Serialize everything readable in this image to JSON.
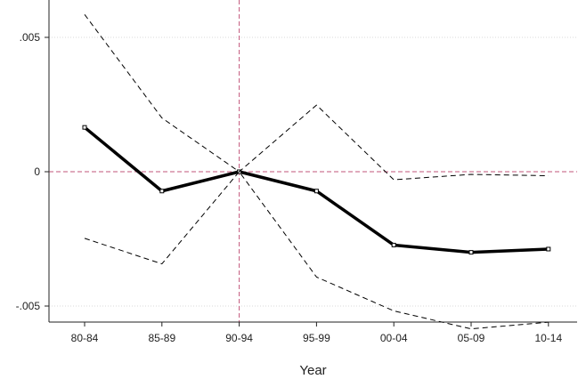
{
  "chart_data": {
    "type": "line",
    "title": "",
    "xlabel": "Year",
    "ylabel": "",
    "categories": [
      "80-84",
      "85-89",
      "90-94",
      "95-99",
      "00-04",
      "05-09",
      "10-14"
    ],
    "ylim": [
      -0.0051,
      0.0059
    ],
    "yticks": [
      -0.005,
      0,
      0.005
    ],
    "ytick_labels": [
      "-.005",
      "0",
      ".005"
    ],
    "grid": "horizontal, light dotted",
    "reference_lines": {
      "x_category": "90-94",
      "y": 0,
      "color": "#c2567a"
    },
    "series": [
      {
        "role": "point-estimate",
        "style": "solid-thick-with-square-markers",
        "color": "#000000",
        "values": [
          0.00165,
          -0.00072,
          0.0,
          -0.00072,
          -0.00273,
          -0.003,
          -0.00288
        ]
      },
      {
        "role": "upper-bound",
        "style": "dashed",
        "color": "#000000",
        "values": [
          0.00585,
          0.002,
          0.0,
          0.00248,
          -0.0003,
          -0.0001,
          -0.00015
        ]
      },
      {
        "role": "lower-bound",
        "style": "dashed",
        "color": "#000000",
        "values": [
          -0.00248,
          -0.00343,
          0.0,
          -0.00392,
          -0.00518,
          -0.00585,
          -0.0056
        ]
      }
    ]
  }
}
